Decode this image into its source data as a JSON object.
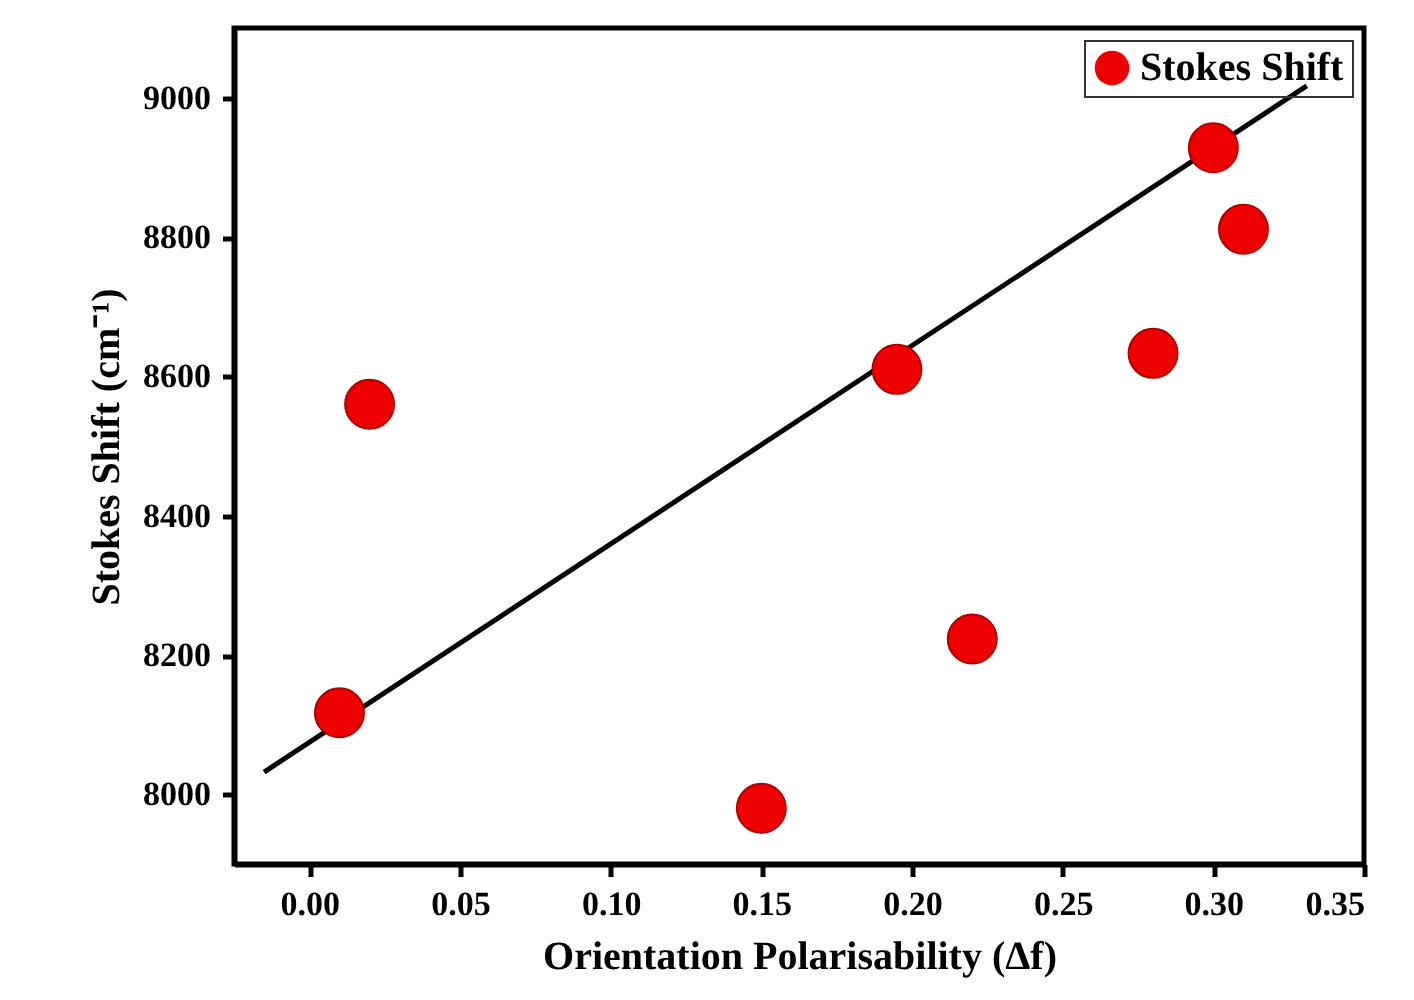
{
  "chart_data": {
    "type": "scatter",
    "xlabel": "Orientation Polarisability (Δf)",
    "ylabel": "Stokes Shift (cm⁻¹)",
    "xlim": [
      -0.025,
      0.35
    ],
    "xticks": [
      {
        "value": 0,
        "label": "0.00"
      },
      {
        "value": 0.05,
        "label": "0.05"
      },
      {
        "value": 0.1,
        "label": "0.10"
      },
      {
        "value": 0.15,
        "label": "0.15"
      },
      {
        "value": 0.2,
        "label": "0.20"
      },
      {
        "value": 0.25,
        "label": "0.25"
      },
      {
        "value": 0.3,
        "label": "0.30"
      },
      {
        "value": 0.35,
        "label": "0.35"
      }
    ],
    "ylim": [
      7900,
      9100
    ],
    "yticks": [
      8000,
      8200,
      8400,
      8600,
      8800,
      9000
    ],
    "grid": false,
    "legend": "top right",
    "series": [
      {
        "name": "Stokes Shift",
        "color": "#ee0000",
        "marker": "circle",
        "x": [
          0.01,
          0.02,
          0.15,
          0.195,
          0.22,
          0.28,
          0.3,
          0.31
        ],
        "values": [
          8117,
          8560,
          7980,
          8610,
          8223,
          8633,
          8928,
          8811
        ]
      },
      {
        "type": "line",
        "color": "#000000",
        "x": [
          -0.015,
          0.331
        ],
        "values": [
          8032,
          9017
        ]
      }
    ]
  }
}
